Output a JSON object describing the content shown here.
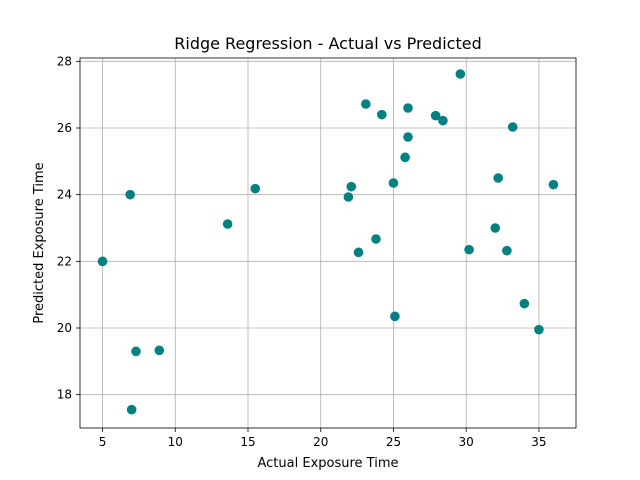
{
  "chart_data": {
    "type": "scatter",
    "title": "Ridge Regression - Actual vs Predicted",
    "xlabel": "Actual Exposure Time",
    "ylabel": "Predicted Exposure Time",
    "xlim": [
      3.45,
      37.55
    ],
    "ylim": [
      17.0,
      28.1
    ],
    "xticks": [
      5,
      10,
      15,
      20,
      25,
      30,
      35
    ],
    "yticks": [
      18,
      20,
      22,
      24,
      26,
      28
    ],
    "grid": true,
    "point_color": "#008080",
    "points": [
      {
        "x": 5.0,
        "y": 22.0
      },
      {
        "x": 6.9,
        "y": 24.0
      },
      {
        "x": 7.0,
        "y": 17.55
      },
      {
        "x": 7.3,
        "y": 19.3
      },
      {
        "x": 8.9,
        "y": 19.33
      },
      {
        "x": 13.6,
        "y": 23.12
      },
      {
        "x": 15.5,
        "y": 24.18
      },
      {
        "x": 21.9,
        "y": 23.93
      },
      {
        "x": 22.1,
        "y": 24.24
      },
      {
        "x": 22.6,
        "y": 22.27
      },
      {
        "x": 23.1,
        "y": 26.72
      },
      {
        "x": 23.8,
        "y": 22.67
      },
      {
        "x": 24.2,
        "y": 26.4
      },
      {
        "x": 25.0,
        "y": 24.35
      },
      {
        "x": 25.1,
        "y": 20.35
      },
      {
        "x": 25.8,
        "y": 25.12
      },
      {
        "x": 26.0,
        "y": 26.6
      },
      {
        "x": 26.0,
        "y": 25.73
      },
      {
        "x": 27.9,
        "y": 26.37
      },
      {
        "x": 28.4,
        "y": 26.22
      },
      {
        "x": 29.6,
        "y": 27.62
      },
      {
        "x": 30.2,
        "y": 22.35
      },
      {
        "x": 32.0,
        "y": 23.0
      },
      {
        "x": 32.2,
        "y": 24.5
      },
      {
        "x": 32.8,
        "y": 22.32
      },
      {
        "x": 33.2,
        "y": 26.03
      },
      {
        "x": 34.0,
        "y": 20.73
      },
      {
        "x": 35.0,
        "y": 19.95
      },
      {
        "x": 36.0,
        "y": 24.3
      }
    ]
  }
}
